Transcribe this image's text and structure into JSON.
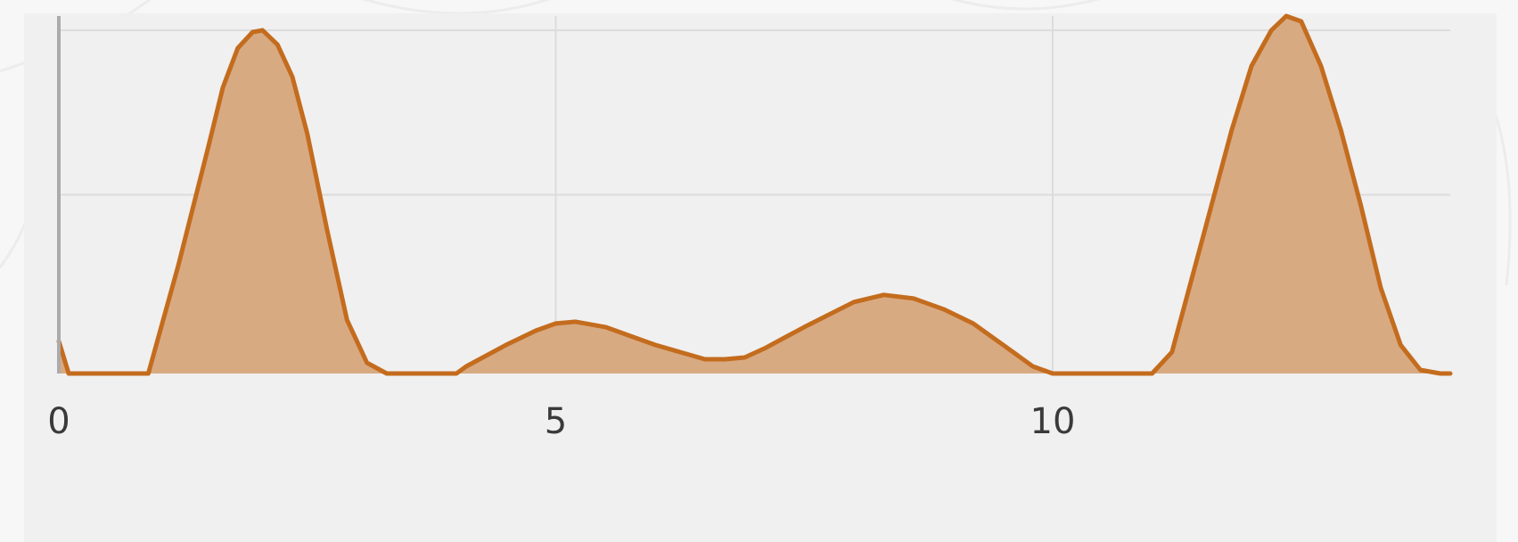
{
  "chart_data": {
    "type": "area",
    "title": "",
    "xlabel": "",
    "ylabel": "",
    "xlim": [
      0,
      14
    ],
    "ylim": [
      0,
      1
    ],
    "x_ticks": [
      {
        "value": 0,
        "label": "0"
      },
      {
        "value": 5,
        "label": "5"
      },
      {
        "value": 10,
        "label": "10"
      }
    ],
    "y_gridlines": [
      0.5,
      0.96
    ],
    "x_gridlines": [
      5,
      10
    ],
    "grid": true,
    "legend": "none",
    "colors": {
      "line": "#c46c1e",
      "fill": "#d8aa82",
      "panel_background": "#f0f0f0",
      "grid": "#dcdcdc"
    },
    "series": [
      {
        "x": [
          0,
          0.1,
          0.9,
          1.2,
          1.5,
          1.65,
          1.8,
          1.95,
          2.05,
          2.2,
          2.35,
          2.5,
          2.7,
          2.9,
          3.1,
          3.3,
          3.5,
          4.0,
          4.1,
          4.5,
          4.8,
          5.0,
          5.2,
          5.5,
          6.0,
          6.5,
          6.7,
          6.9,
          7.1,
          7.5,
          8.0,
          8.3,
          8.6,
          8.9,
          9.2,
          9.5,
          9.8,
          10.0,
          10.2,
          11.0,
          11.2,
          11.5,
          11.8,
          12.0,
          12.2,
          12.35,
          12.5,
          12.7,
          12.9,
          13.1,
          13.3,
          13.5,
          13.7,
          13.9,
          14.0
        ],
        "values": [
          0.09,
          0,
          0,
          0.3,
          0.63,
          0.8,
          0.91,
          0.955,
          0.96,
          0.92,
          0.83,
          0.67,
          0.4,
          0.15,
          0.03,
          0,
          0,
          0,
          0.02,
          0.08,
          0.12,
          0.14,
          0.145,
          0.13,
          0.08,
          0.04,
          0.04,
          0.045,
          0.07,
          0.13,
          0.2,
          0.22,
          0.21,
          0.18,
          0.14,
          0.08,
          0.02,
          0,
          0,
          0,
          0.06,
          0.37,
          0.68,
          0.86,
          0.96,
          1.0,
          0.985,
          0.86,
          0.68,
          0.47,
          0.24,
          0.08,
          0.01,
          0,
          0
        ]
      }
    ]
  }
}
